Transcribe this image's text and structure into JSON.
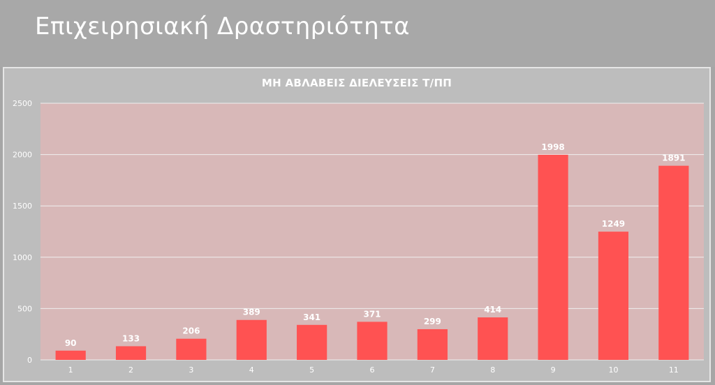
{
  "slide": {
    "title": "Επιχειρησιακή Δραστηριότητα"
  },
  "colors": {
    "bar": "#ff5252",
    "plot_bg": "#d8b8b8",
    "panel_bg": "#bdbdbd",
    "gridline": "#efefef",
    "text": "#ffffff"
  },
  "chart_data": {
    "type": "bar",
    "title": "ΜΗ ΑΒΛΑΒΕΙΣ ΔΙΕΛΕΥΣΕΙΣ Τ/ΠΠ",
    "xlabel": "",
    "ylabel": "",
    "categories": [
      "1",
      "2",
      "3",
      "4",
      "5",
      "6",
      "7",
      "8",
      "9",
      "10",
      "11"
    ],
    "values": [
      90,
      133,
      206,
      389,
      341,
      371,
      299,
      414,
      1998,
      1249,
      1891
    ],
    "ylim": [
      0,
      2500
    ],
    "yticks": [
      0,
      500,
      1000,
      1500,
      2000,
      2500
    ],
    "grid": true,
    "data_labels": true
  }
}
